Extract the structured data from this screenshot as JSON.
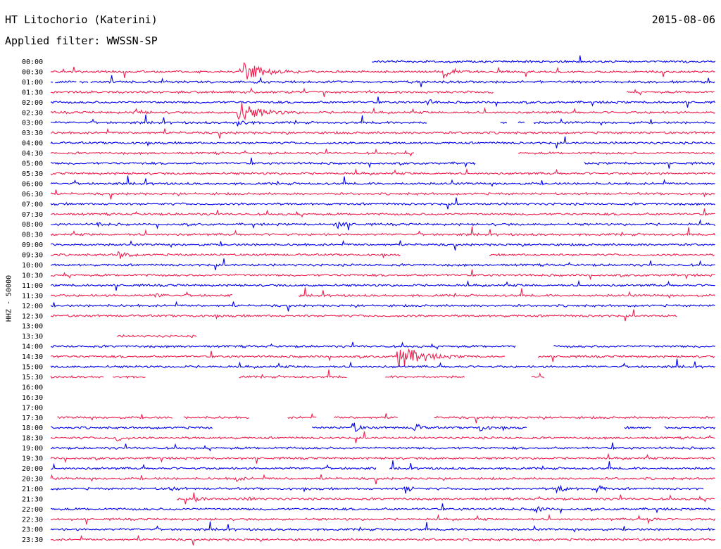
{
  "header": {
    "station": "HT Litochorio (Katerini)",
    "date": "2015-08-06",
    "filter_label": "Applied filter: WWSSN-SP"
  },
  "chart_data": {
    "type": "line",
    "title": "",
    "ylabel": "HHZ - 50000",
    "colors": [
      "#0000ee",
      "#ee1f4f"
    ],
    "row_labels": [
      "00:00",
      "00:30",
      "01:00",
      "01:30",
      "02:00",
      "02:30",
      "03:00",
      "03:30",
      "04:00",
      "04:30",
      "05:00",
      "05:30",
      "06:00",
      "06:30",
      "07:00",
      "07:30",
      "08:00",
      "08:30",
      "09:00",
      "09:30",
      "10:00",
      "10:30",
      "11:00",
      "11:30",
      "12:00",
      "12:30",
      "13:00",
      "13:30",
      "14:00",
      "14:30",
      "15:00",
      "15:30",
      "16:00",
      "16:30",
      "17:00",
      "17:30",
      "18:00",
      "18:30",
      "19:00",
      "19:30",
      "20:00",
      "20:30",
      "21:00",
      "21:30",
      "22:00",
      "22:30",
      "23:00",
      "23:30"
    ],
    "trace_segments": [
      [
        [
          14.5,
          30
        ]
      ],
      [
        [
          0,
          30
        ]
      ],
      [
        [
          0,
          0.1
        ],
        [
          0.2,
          1.2
        ],
        [
          1.3,
          1.7
        ],
        [
          1.8,
          30
        ]
      ],
      [
        [
          0,
          20
        ],
        [
          26,
          30
        ]
      ],
      [
        [
          0,
          30
        ]
      ],
      [
        [
          0,
          30
        ]
      ],
      [
        [
          0,
          17
        ],
        [
          20.3,
          20.6
        ],
        [
          21.1,
          21.4
        ],
        [
          21.8,
          30
        ]
      ],
      [
        [
          0,
          30
        ]
      ],
      [
        [
          0,
          30
        ]
      ],
      [
        [
          0,
          16.4
        ],
        [
          21.1,
          30
        ]
      ],
      [
        [
          0,
          19.2
        ],
        [
          24.1,
          30
        ]
      ],
      [
        [
          0,
          30
        ]
      ],
      [
        [
          0,
          30
        ]
      ],
      [
        [
          0,
          30
        ]
      ],
      [
        [
          0,
          30
        ]
      ],
      [
        [
          0,
          30
        ]
      ],
      [
        [
          0,
          30
        ]
      ],
      [
        [
          0,
          30
        ]
      ],
      [
        [
          0,
          30
        ]
      ],
      [
        [
          0,
          15.8
        ],
        [
          19.8,
          30
        ]
      ],
      [
        [
          0,
          30
        ]
      ],
      [
        [
          0,
          30
        ]
      ],
      [
        [
          0,
          30
        ]
      ],
      [
        [
          0,
          8.2
        ],
        [
          11.2,
          30
        ]
      ],
      [
        [
          0,
          30
        ]
      ],
      [
        [
          0,
          28.3
        ]
      ],
      [],
      [
        [
          3,
          6.6
        ]
      ],
      [
        [
          0,
          21
        ],
        [
          22.7,
          30
        ]
      ],
      [
        [
          0,
          20.5
        ],
        [
          22,
          30
        ]
      ],
      [
        [
          0,
          30
        ]
      ],
      [
        [
          0,
          2.4
        ],
        [
          2.8,
          4.3
        ],
        [
          8.5,
          13.4
        ],
        [
          15.1,
          18.7
        ],
        [
          21.7,
          22.3
        ]
      ],
      [],
      [],
      [],
      [
        [
          0.3,
          5.5
        ],
        [
          6,
          9
        ],
        [
          10.7,
          12
        ],
        [
          12.8,
          15.7
        ],
        [
          17.3,
          30
        ]
      ],
      [
        [
          0,
          7.3
        ],
        [
          11.8,
          21.5
        ],
        [
          25.9,
          27.1
        ],
        [
          27.7,
          30
        ]
      ],
      [
        [
          0,
          30
        ]
      ],
      [
        [
          0,
          30
        ]
      ],
      [
        [
          0,
          30
        ]
      ],
      [
        [
          0,
          14.7
        ],
        [
          15.3,
          30
        ]
      ],
      [
        [
          0,
          30
        ]
      ],
      [
        [
          0,
          29.5
        ]
      ],
      [
        [
          5.7,
          30
        ]
      ],
      [
        [
          0,
          30
        ]
      ],
      [
        [
          0,
          30
        ]
      ],
      [
        [
          0,
          30
        ]
      ],
      [
        [
          0,
          30
        ]
      ]
    ],
    "events": [
      {
        "row": 1,
        "x": 8.8,
        "size": 1.4
      },
      {
        "row": 1,
        "x": 17.8,
        "size": 0.8
      },
      {
        "row": 4,
        "x": 17.1,
        "size": 0.4
      },
      {
        "row": 5,
        "x": 8.5,
        "size": 1.6
      },
      {
        "row": 5,
        "x": 3.9,
        "size": 0.5
      },
      {
        "row": 6,
        "x": 8.5,
        "size": 0.6
      },
      {
        "row": 16,
        "x": 12.9,
        "size": 0.7
      },
      {
        "row": 16,
        "x": 2.1,
        "size": 0.4
      },
      {
        "row": 19,
        "x": 3.1,
        "size": 0.6
      },
      {
        "row": 23,
        "x": 4.8,
        "size": 0.4
      },
      {
        "row": 29,
        "x": 15.7,
        "size": 1.8
      },
      {
        "row": 36,
        "x": 13.7,
        "size": 0.6
      },
      {
        "row": 36,
        "x": 16.4,
        "size": 0.6
      },
      {
        "row": 36,
        "x": 19.4,
        "size": 0.5
      },
      {
        "row": 37,
        "x": 3,
        "size": 0.5
      },
      {
        "row": 41,
        "x": 8.3,
        "size": 0.5
      },
      {
        "row": 42,
        "x": 16,
        "size": 0.6
      },
      {
        "row": 42,
        "x": 22.9,
        "size": 0.6
      },
      {
        "row": 42,
        "x": 24.7,
        "size": 0.5
      },
      {
        "row": 42,
        "x": 5.4,
        "size": 0.4
      },
      {
        "row": 43,
        "x": 6.6,
        "size": 0.5
      },
      {
        "row": 43,
        "x": 8.9,
        "size": 0.4
      },
      {
        "row": 44,
        "x": 21.9,
        "size": 0.5
      },
      {
        "row": 45,
        "x": 27,
        "size": 0.5
      }
    ]
  }
}
